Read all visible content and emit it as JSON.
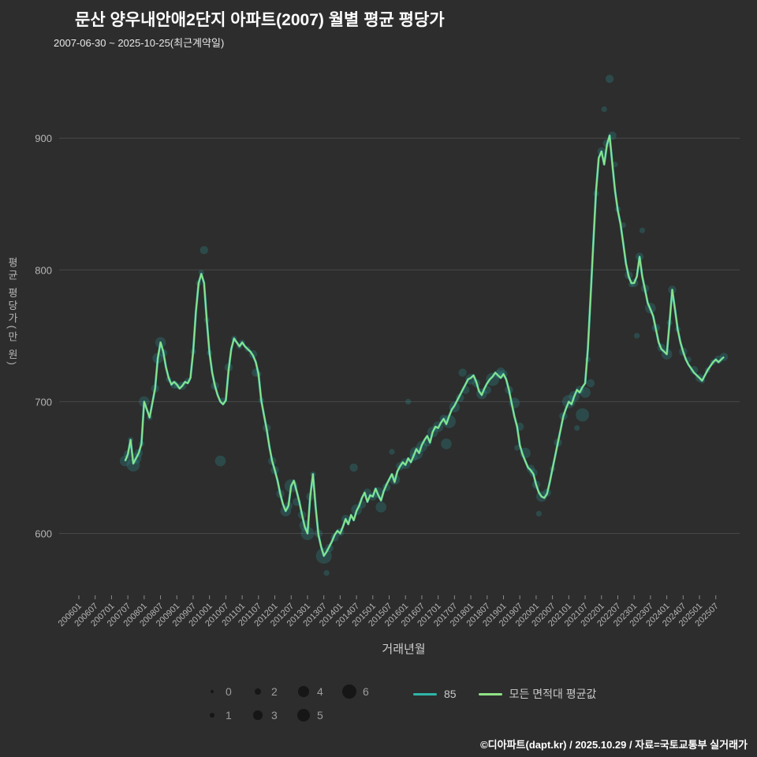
{
  "footer": "©디아파트(dapt.kr) / 2025.10.29 / 자료=국토교통부 실거래가",
  "chart_data": {
    "type": "line+bubble",
    "title": "문산 양우내안애2단지 아파트(2007) 월별 평균 평당가",
    "subtitle": "2007-06-30 ~ 2025-10-25(최근계약일)",
    "xlabel": "거래년월",
    "ylabel": "평균 평당가(만 원)",
    "ylim": [
      553,
      954
    ],
    "yticks": [
      600,
      700,
      800,
      900
    ],
    "xticks": [
      "200601",
      "200607",
      "200701",
      "200707",
      "200801",
      "200807",
      "200901",
      "200907",
      "201001",
      "201007",
      "201101",
      "201107",
      "201201",
      "201207",
      "201301",
      "201307",
      "201401",
      "201407",
      "201501",
      "201507",
      "201601",
      "201607",
      "201701",
      "201707",
      "201801",
      "201807",
      "201901",
      "201907",
      "202001",
      "202007",
      "202101",
      "202107",
      "202201",
      "202207",
      "202301",
      "202307",
      "202401",
      "202407",
      "202501",
      "202507"
    ],
    "start": {
      "year": 2007,
      "month": 6
    },
    "series": [
      {
        "name": "85",
        "type": "line",
        "color": "#2fb5a8"
      },
      {
        "name": "모든 면적대 평균값",
        "type": "line",
        "color": "#90e287"
      }
    ],
    "values": [
      655,
      660,
      671,
      653,
      657,
      661,
      668,
      700,
      694,
      688,
      699,
      710,
      733,
      745,
      738,
      726,
      718,
      713,
      715,
      713,
      710,
      712,
      715,
      714,
      718,
      738,
      768,
      790,
      797,
      790,
      762,
      737,
      722,
      712,
      705,
      700,
      698,
      701,
      724,
      740,
      748,
      745,
      742,
      745,
      742,
      740,
      738,
      735,
      730,
      721,
      701,
      690,
      679,
      666,
      655,
      648,
      640,
      630,
      622,
      617,
      621,
      636,
      640,
      632,
      624,
      614,
      605,
      600,
      628,
      645,
      620,
      599,
      590,
      583,
      586,
      590,
      594,
      599,
      602,
      600,
      605,
      611,
      607,
      614,
      610,
      617,
      621,
      627,
      631,
      624,
      629,
      628,
      634,
      629,
      625,
      632,
      637,
      641,
      645,
      639,
      647,
      651,
      654,
      652,
      657,
      654,
      659,
      664,
      661,
      667,
      671,
      674,
      669,
      677,
      681,
      680,
      684,
      687,
      683,
      689,
      694,
      697,
      701,
      705,
      709,
      713,
      717,
      718,
      720,
      715,
      708,
      705,
      710,
      714,
      717,
      719,
      722,
      720,
      718,
      721,
      717,
      709,
      699,
      689,
      681,
      667,
      660,
      655,
      650,
      648,
      645,
      637,
      631,
      628,
      627,
      630,
      639,
      649,
      659,
      669,
      679,
      689,
      695,
      700,
      698,
      704,
      709,
      707,
      711,
      714,
      740,
      780,
      820,
      860,
      885,
      890,
      880,
      895,
      902,
      880,
      860,
      845,
      835,
      820,
      805,
      795,
      790,
      790,
      795,
      810,
      795,
      785,
      775,
      770,
      765,
      755,
      745,
      740,
      738,
      736,
      760,
      785,
      770,
      755,
      745,
      738,
      732,
      728,
      725,
      722,
      720,
      718,
      716,
      720,
      724,
      727,
      730,
      732,
      730,
      732,
      734
    ],
    "bubbles": {
      "color": "#2e8585",
      "opacity": 0.33,
      "points": [
        [
          0,
          655,
          3
        ],
        [
          1,
          660,
          2
        ],
        [
          2,
          671,
          1
        ],
        [
          3,
          652,
          4
        ],
        [
          4,
          657,
          3
        ],
        [
          5,
          661,
          2
        ],
        [
          6,
          668,
          1
        ],
        [
          7,
          700,
          3
        ],
        [
          9,
          688,
          1
        ],
        [
          11,
          710,
          2
        ],
        [
          12,
          733,
          3
        ],
        [
          13,
          745,
          3
        ],
        [
          14,
          737,
          2
        ],
        [
          16,
          717,
          1
        ],
        [
          18,
          713,
          2
        ],
        [
          19,
          712,
          1
        ],
        [
          21,
          712,
          2
        ],
        [
          23,
          716,
          1
        ],
        [
          25,
          738,
          1
        ],
        [
          27,
          790,
          1
        ],
        [
          28,
          798,
          1
        ],
        [
          29,
          815,
          2
        ],
        [
          30,
          762,
          1
        ],
        [
          31,
          737,
          1
        ],
        [
          33,
          712,
          2
        ],
        [
          35,
          655,
          3
        ],
        [
          36,
          701,
          1
        ],
        [
          38,
          726,
          2
        ],
        [
          40,
          748,
          1
        ],
        [
          42,
          742,
          1
        ],
        [
          43,
          745,
          1
        ],
        [
          45,
          740,
          1
        ],
        [
          47,
          736,
          2
        ],
        [
          48,
          722,
          2
        ],
        [
          49,
          721,
          1
        ],
        [
          50,
          701,
          1
        ],
        [
          52,
          680,
          2
        ],
        [
          54,
          655,
          2
        ],
        [
          55,
          648,
          2
        ],
        [
          57,
          630,
          2
        ],
        [
          59,
          617,
          3
        ],
        [
          60,
          621,
          2
        ],
        [
          61,
          636,
          4
        ],
        [
          63,
          624,
          2
        ],
        [
          65,
          614,
          2
        ],
        [
          66,
          606,
          3
        ],
        [
          67,
          600,
          4
        ],
        [
          68,
          628,
          2
        ],
        [
          69,
          645,
          1
        ],
        [
          71,
          600,
          2
        ],
        [
          73,
          583,
          5
        ],
        [
          74,
          570,
          1
        ],
        [
          75,
          589,
          2
        ],
        [
          77,
          597,
          2
        ],
        [
          79,
          601,
          2
        ],
        [
          81,
          611,
          2
        ],
        [
          84,
          650,
          2
        ],
        [
          85,
          618,
          3
        ],
        [
          87,
          622,
          2
        ],
        [
          89,
          631,
          2
        ],
        [
          91,
          628,
          2
        ],
        [
          93,
          631,
          3
        ],
        [
          94,
          620,
          3
        ],
        [
          96,
          635,
          2
        ],
        [
          98,
          662,
          1
        ],
        [
          99,
          641,
          3
        ],
        [
          101,
          651,
          2
        ],
        [
          103,
          653,
          3
        ],
        [
          104,
          700,
          1
        ],
        [
          106,
          658,
          2
        ],
        [
          107,
          661,
          4
        ],
        [
          109,
          666,
          3
        ],
        [
          111,
          669,
          2
        ],
        [
          113,
          677,
          3
        ],
        [
          115,
          681,
          3
        ],
        [
          117,
          687,
          2
        ],
        [
          118,
          668,
          3
        ],
        [
          119,
          685,
          4
        ],
        [
          121,
          696,
          3
        ],
        [
          123,
          703,
          2
        ],
        [
          124,
          722,
          2
        ],
        [
          125,
          709,
          2
        ],
        [
          127,
          717,
          3
        ],
        [
          129,
          714,
          2
        ],
        [
          131,
          706,
          3
        ],
        [
          133,
          709,
          2
        ],
        [
          135,
          717,
          4
        ],
        [
          137,
          721,
          2
        ],
        [
          138,
          723,
          2
        ],
        [
          139,
          721,
          2
        ],
        [
          141,
          709,
          2
        ],
        [
          143,
          699,
          3
        ],
        [
          144,
          665,
          1
        ],
        [
          145,
          681,
          2
        ],
        [
          147,
          661,
          3
        ],
        [
          149,
          649,
          2
        ],
        [
          150,
          646,
          2
        ],
        [
          151,
          637,
          2
        ],
        [
          152,
          615,
          1
        ],
        [
          153,
          628,
          3
        ],
        [
          155,
          631,
          2
        ],
        [
          157,
          649,
          1
        ],
        [
          159,
          669,
          2
        ],
        [
          161,
          689,
          2
        ],
        [
          163,
          700,
          4
        ],
        [
          165,
          704,
          3
        ],
        [
          166,
          680,
          1
        ],
        [
          167,
          709,
          2
        ],
        [
          168,
          690,
          4
        ],
        [
          169,
          707,
          3
        ],
        [
          170,
          732,
          1
        ],
        [
          171,
          714,
          2
        ],
        [
          173,
          858,
          1
        ],
        [
          175,
          890,
          2
        ],
        [
          176,
          922,
          1
        ],
        [
          177,
          896,
          2
        ],
        [
          178,
          945,
          2
        ],
        [
          179,
          902,
          2
        ],
        [
          180,
          880,
          1
        ],
        [
          181,
          846,
          1
        ],
        [
          183,
          834,
          1
        ],
        [
          185,
          796,
          2
        ],
        [
          186,
          789,
          1
        ],
        [
          187,
          790,
          2
        ],
        [
          188,
          750,
          1
        ],
        [
          189,
          810,
          2
        ],
        [
          190,
          830,
          1
        ],
        [
          191,
          786,
          2
        ],
        [
          193,
          771,
          3
        ],
        [
          195,
          756,
          2
        ],
        [
          197,
          741,
          2
        ],
        [
          199,
          736,
          3
        ],
        [
          200,
          760,
          1
        ],
        [
          201,
          785,
          2
        ],
        [
          203,
          755,
          1
        ],
        [
          205,
          738,
          2
        ],
        [
          207,
          732,
          1
        ],
        [
          209,
          724,
          2
        ],
        [
          211,
          718,
          2
        ],
        [
          212,
          716,
          1
        ],
        [
          214,
          724,
          1
        ],
        [
          216,
          730,
          1
        ],
        [
          218,
          732,
          2
        ],
        [
          220,
          734,
          2
        ]
      ]
    },
    "size_legend": {
      "values": [
        0,
        1,
        2,
        3,
        4,
        5,
        6
      ]
    },
    "colors": {
      "background": "#2d2d2d",
      "grid": "#484848",
      "tick": "#b5b5b5",
      "legend_dot": "#161616"
    }
  }
}
